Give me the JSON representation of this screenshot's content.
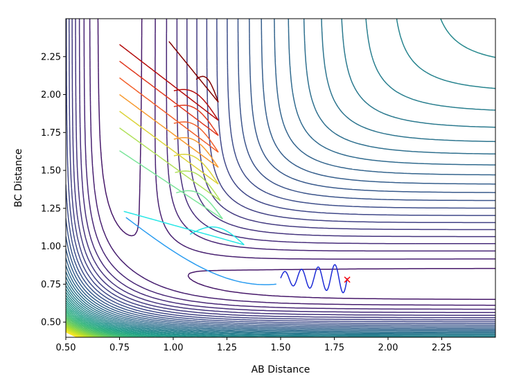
{
  "chart_data": {
    "type": "contour",
    "xlabel": "AB Distance",
    "ylabel": "BC Distance",
    "xlim": [
      0.5,
      2.5
    ],
    "ylim": [
      0.4,
      2.5
    ],
    "xticks": [
      "0.50",
      "0.75",
      "1.00",
      "1.25",
      "1.50",
      "1.75",
      "2.00",
      "2.25"
    ],
    "yticks": [
      "0.50",
      "0.75",
      "1.00",
      "1.25",
      "1.50",
      "1.75",
      "2.00",
      "2.25"
    ],
    "grid": false,
    "colormap": "viridis",
    "surface": "London-Eyring-Polanyi-Sato style A+BC potential energy surface with entrance and exit valleys",
    "trajectories": [
      {
        "color": "#7f0000",
        "start": [
          0.98,
          2.35
        ],
        "end": [
          1.21,
          1.95
        ]
      },
      {
        "color": "#b40c0c",
        "start": [
          0.75,
          2.33
        ],
        "end": [
          1.21,
          1.83
        ]
      },
      {
        "color": "#e0391f",
        "start": [
          0.75,
          2.22
        ],
        "end": [
          1.21,
          1.73
        ]
      },
      {
        "color": "#f2602b",
        "start": [
          0.75,
          2.11
        ],
        "end": [
          1.21,
          1.62
        ]
      },
      {
        "color": "#f79a2f",
        "start": [
          0.75,
          2.0
        ],
        "end": [
          1.21,
          1.52
        ]
      },
      {
        "color": "#dcd33a",
        "start": [
          0.75,
          1.89
        ],
        "end": [
          1.21,
          1.41
        ]
      },
      {
        "color": "#b0e05a",
        "start": [
          0.75,
          1.78
        ],
        "end": [
          1.22,
          1.3
        ]
      },
      {
        "color": "#7be59a",
        "start": [
          0.75,
          1.63
        ],
        "end": [
          1.23,
          1.18
        ]
      },
      {
        "color": "#27e6e6",
        "start": [
          0.77,
          1.23
        ],
        "end": [
          1.33,
          1.01
        ]
      },
      {
        "color": "#2a9cf0",
        "start": [
          0.78,
          1.19
        ],
        "end": [
          1.48,
          0.75
        ]
      },
      {
        "color": "#1c2bd6",
        "start": [
          1.5,
          0.77
        ],
        "end": [
          1.81,
          0.8
        ]
      }
    ],
    "marker": {
      "symbol": "x",
      "color": "#ff0000",
      "x": 1.81,
      "y": 0.78
    }
  }
}
